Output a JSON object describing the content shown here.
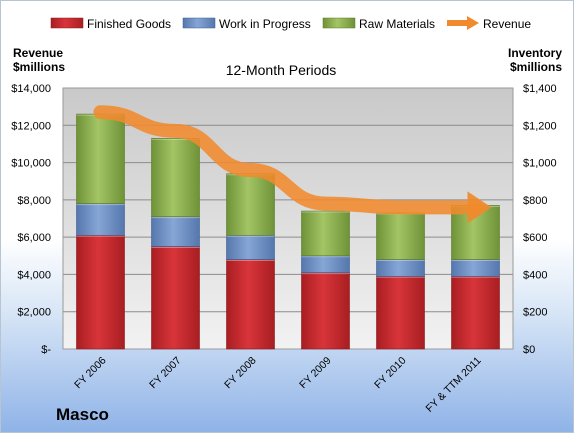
{
  "company": "Masco",
  "chart_data": {
    "type": "bar",
    "stacked": true,
    "title": "12-Month Periods",
    "categories": [
      "FY 2006",
      "FY 2007",
      "FY 2008",
      "FY 2009",
      "FY 2010",
      "FY & TTM 2011"
    ],
    "series": [
      {
        "name": "Finished Goods",
        "axis": "right",
        "color": "#c0262b",
        "values": [
          610,
          550,
          480,
          410,
          390,
          390
        ]
      },
      {
        "name": "Work in Progress",
        "axis": "right",
        "color": "#6b8ec5",
        "values": [
          170,
          160,
          130,
          90,
          90,
          90
        ]
      },
      {
        "name": "Raw Materials",
        "axis": "right",
        "color": "#8aae4a",
        "values": [
          480,
          420,
          330,
          240,
          250,
          290
        ]
      },
      {
        "name": "Revenue",
        "axis": "left",
        "type": "line",
        "color": "#f08a2c",
        "values": [
          12700,
          11700,
          9600,
          7800,
          7600,
          7600
        ]
      }
    ],
    "left_axis": {
      "label": [
        "Revenue",
        "$millions"
      ],
      "min": 0,
      "max": 14000,
      "ticks": [
        "$-",
        "$2,000",
        "$4,000",
        "$6,000",
        "$8,000",
        "$10,000",
        "$12,000",
        "$14,000"
      ]
    },
    "right_axis": {
      "label": [
        "Inventory",
        "$millions"
      ],
      "min": 0,
      "max": 1400,
      "ticks": [
        "$0",
        "$200",
        "$400",
        "$600",
        "$800",
        "$1,000",
        "$1,200",
        "$1,400"
      ]
    },
    "legend_position": "top",
    "grid": true
  }
}
